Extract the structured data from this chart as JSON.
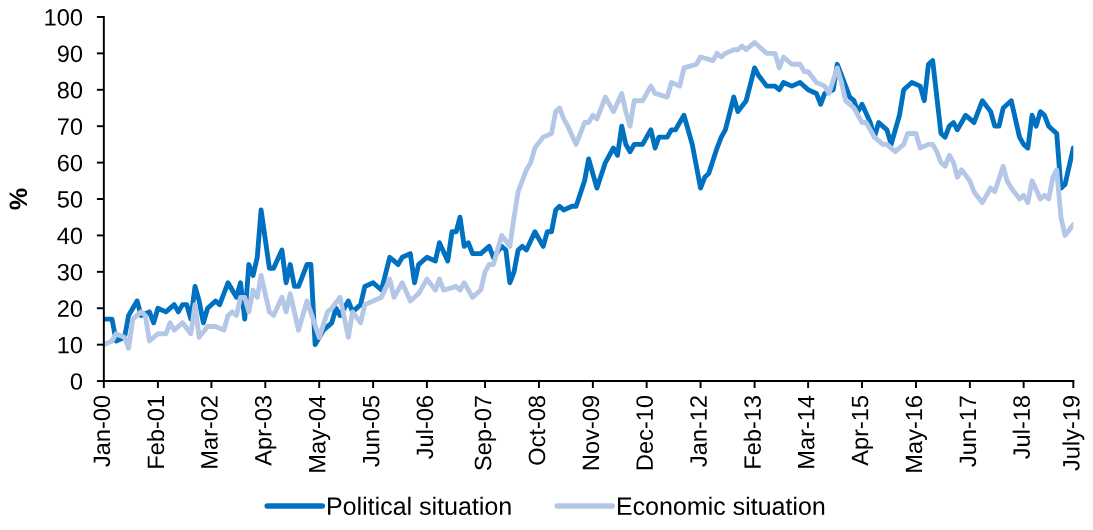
{
  "chart_data": {
    "type": "line",
    "ylabel": "%",
    "xlim": [
      "2000-01",
      "2019-07"
    ],
    "xticks": [
      {
        "value": "2000-01",
        "label": "Jan-00"
      },
      {
        "value": "2001-02",
        "label": "Feb-01"
      },
      {
        "value": "2002-03",
        "label": "Mar-02"
      },
      {
        "value": "2003-04",
        "label": "Apr-03"
      },
      {
        "value": "2004-05",
        "label": "May-04"
      },
      {
        "value": "2005-06",
        "label": "Jun-05"
      },
      {
        "value": "2006-07",
        "label": "Jul-06"
      },
      {
        "value": "2007-09",
        "label": "Sep-07"
      },
      {
        "value": "2008-10",
        "label": "Oct-08"
      },
      {
        "value": "2009-11",
        "label": "Nov-09"
      },
      {
        "value": "2010-12",
        "label": "Dec-10"
      },
      {
        "value": "2012-01",
        "label": "Jan-12"
      },
      {
        "value": "2013-02",
        "label": "Feb-13"
      },
      {
        "value": "2014-03",
        "label": "Mar-14"
      },
      {
        "value": "2015-04",
        "label": "Apr-15"
      },
      {
        "value": "2016-05",
        "label": "May-16"
      },
      {
        "value": "2017-06",
        "label": "Jun-17"
      },
      {
        "value": "2018-07",
        "label": "Jul-18"
      },
      {
        "value": "2019-07",
        "label": "July-19"
      }
    ],
    "ylim": [
      0,
      100
    ],
    "yticks": [
      0,
      10,
      20,
      30,
      40,
      50,
      60,
      70,
      80,
      90,
      100
    ],
    "legend": "bottom",
    "series": [
      {
        "name": "Political situation",
        "color": "#0070c0",
        "x": [
          "2000-01",
          "2000-03",
          "2000-04",
          "2000-06",
          "2000-07",
          "2000-09",
          "2000-10",
          "2000-12",
          "2001-01",
          "2001-02",
          "2001-04",
          "2001-06",
          "2001-07",
          "2001-08",
          "2001-09",
          "2001-10",
          "2001-11",
          "2001-12",
          "2002-01",
          "2002-02",
          "2002-04",
          "2002-05",
          "2002-07",
          "2002-09",
          "2002-10",
          "2002-11",
          "2002-12",
          "2003-01",
          "2003-02",
          "2003-03",
          "2003-05",
          "2003-06",
          "2003-08",
          "2003-09",
          "2003-10",
          "2003-11",
          "2003-12",
          "2004-02",
          "2004-03",
          "2004-04",
          "2004-06",
          "2004-08",
          "2004-09",
          "2004-10",
          "2004-12",
          "2005-01",
          "2005-03",
          "2005-04",
          "2005-06",
          "2005-08",
          "2005-10",
          "2005-11",
          "2005-12",
          "2006-01",
          "2006-03",
          "2006-04",
          "2006-05",
          "2006-07",
          "2006-09",
          "2006-10",
          "2006-12",
          "2007-01",
          "2007-02",
          "2007-03",
          "2007-04",
          "2007-05",
          "2007-06",
          "2007-08",
          "2007-10",
          "2007-11",
          "2008-01",
          "2008-02",
          "2008-03",
          "2008-04",
          "2008-05",
          "2008-06",
          "2008-07",
          "2008-09",
          "2008-11",
          "2008-12",
          "2009-01",
          "2009-02",
          "2009-03",
          "2009-04",
          "2009-06",
          "2009-07",
          "2009-09",
          "2009-10",
          "2009-12",
          "2010-02",
          "2010-04",
          "2010-05",
          "2010-06",
          "2010-07",
          "2010-08",
          "2010-09",
          "2010-11",
          "2010-12",
          "2011-01",
          "2011-02",
          "2011-03",
          "2011-05",
          "2011-06",
          "2011-07",
          "2011-09",
          "2011-11",
          "2012-01",
          "2012-02",
          "2012-03",
          "2012-05",
          "2012-06",
          "2012-07",
          "2012-09",
          "2012-10",
          "2012-12",
          "2013-02",
          "2013-03",
          "2013-05",
          "2013-07",
          "2013-08",
          "2013-09",
          "2013-11",
          "2014-01",
          "2014-03",
          "2014-05",
          "2014-06",
          "2014-07",
          "2014-09",
          "2014-10",
          "2014-11",
          "2015-01",
          "2015-02",
          "2015-03",
          "2015-04",
          "2015-06",
          "2015-07",
          "2015-08",
          "2015-10",
          "2015-11",
          "2016-01",
          "2016-02",
          "2016-04",
          "2016-06",
          "2016-07",
          "2016-08",
          "2016-09",
          "2016-11",
          "2016-12",
          "2017-01",
          "2017-02",
          "2017-03",
          "2017-05",
          "2017-06",
          "2017-07",
          "2017-09",
          "2017-11",
          "2017-12",
          "2018-01",
          "2018-02",
          "2018-04",
          "2018-06",
          "2018-07",
          "2018-08",
          "2018-09",
          "2018-10",
          "2018-11",
          "2018-12",
          "2019-01",
          "2019-03",
          "2019-04",
          "2019-05",
          "2019-07"
        ],
        "values": [
          17,
          17,
          11,
          12,
          18,
          22,
          18,
          19,
          16,
          20,
          19,
          21,
          19,
          21,
          21,
          17,
          26,
          22,
          16,
          20,
          22,
          21,
          27,
          23,
          27,
          17,
          32,
          29,
          34,
          47,
          31,
          31,
          36,
          27,
          32,
          26,
          26,
          32,
          32,
          10,
          14,
          16,
          20,
          18,
          22,
          19,
          21,
          26,
          27,
          25,
          34,
          33,
          32,
          34,
          35,
          27,
          32,
          34,
          33,
          38,
          33,
          41,
          41,
          45,
          37,
          38,
          35,
          35,
          37,
          34,
          37,
          36,
          27,
          30,
          36,
          37,
          36,
          41,
          37,
          41,
          41,
          47,
          48,
          47,
          48,
          48,
          55,
          61,
          53,
          60,
          64,
          62,
          70,
          65,
          63,
          65,
          65,
          67,
          69,
          64,
          67,
          67,
          69,
          69,
          73,
          65,
          53,
          56,
          57,
          64,
          67,
          69,
          78,
          74,
          77,
          86,
          84,
          81,
          81,
          80,
          82,
          81,
          82,
          80,
          79,
          76,
          79,
          80,
          87,
          84,
          78,
          77,
          74,
          76,
          71,
          67,
          71,
          69,
          65,
          73,
          80,
          82,
          81,
          77,
          87,
          88,
          68,
          67,
          70,
          71,
          69,
          73,
          72,
          71,
          77,
          74,
          70,
          70,
          75,
          77,
          67,
          65,
          64,
          73,
          70,
          74,
          73,
          70,
          68,
          53,
          54,
          64
        ]
      },
      {
        "name": "Economic situation",
        "color": "#b4c7e7",
        "x": [
          "2000-01",
          "2000-03",
          "2000-04",
          "2000-06",
          "2000-07",
          "2000-08",
          "2000-10",
          "2000-11",
          "2000-12",
          "2001-02",
          "2001-04",
          "2001-05",
          "2001-06",
          "2001-08",
          "2001-10",
          "2001-11",
          "2001-12",
          "2002-02",
          "2002-04",
          "2002-06",
          "2002-07",
          "2002-08",
          "2002-09",
          "2002-10",
          "2002-11",
          "2002-12",
          "2003-01",
          "2003-02",
          "2003-03",
          "2003-05",
          "2003-06",
          "2003-08",
          "2003-09",
          "2003-10",
          "2003-12",
          "2004-02",
          "2004-05",
          "2004-07",
          "2004-08",
          "2004-10",
          "2004-12",
          "2005-01",
          "2005-03",
          "2005-04",
          "2005-06",
          "2005-08",
          "2005-10",
          "2005-11",
          "2006-01",
          "2006-03",
          "2006-05",
          "2006-07",
          "2006-09",
          "2006-10",
          "2006-11",
          "2007-02",
          "2007-03",
          "2007-04",
          "2007-06",
          "2007-08",
          "2007-09",
          "2007-10",
          "2007-11",
          "2008-01",
          "2008-03",
          "2008-04",
          "2008-05",
          "2008-07",
          "2008-08",
          "2008-09",
          "2008-11",
          "2009-01",
          "2009-02",
          "2009-03",
          "2009-04",
          "2009-05",
          "2009-07",
          "2009-09",
          "2009-10",
          "2009-11",
          "2009-12",
          "2010-02",
          "2010-04",
          "2010-06",
          "2010-07",
          "2010-08",
          "2010-09",
          "2010-11",
          "2011-01",
          "2011-02",
          "2011-05",
          "2011-06",
          "2011-08",
          "2011-09",
          "2011-12",
          "2012-01",
          "2012-04",
          "2012-05",
          "2012-06",
          "2012-07",
          "2012-09",
          "2012-10",
          "2012-11",
          "2012-12",
          "2013-02",
          "2013-03",
          "2013-04",
          "2013-05",
          "2013-07",
          "2013-08",
          "2013-09",
          "2013-11",
          "2014-01",
          "2014-02",
          "2014-03",
          "2014-05",
          "2014-07",
          "2014-08",
          "2014-10",
          "2014-11",
          "2014-12",
          "2015-02",
          "2015-04",
          "2015-05",
          "2015-07",
          "2015-09",
          "2015-10",
          "2015-12",
          "2016-02",
          "2016-03",
          "2016-05",
          "2016-06",
          "2016-08",
          "2016-09",
          "2016-10",
          "2016-11",
          "2016-12",
          "2017-01",
          "2017-02",
          "2017-03",
          "2017-04",
          "2017-06",
          "2017-07",
          "2017-09",
          "2017-10",
          "2017-11",
          "2017-12",
          "2018-02",
          "2018-03",
          "2018-04",
          "2018-06",
          "2018-07",
          "2018-08",
          "2018-09",
          "2018-11",
          "2018-12",
          "2019-01",
          "2019-02",
          "2019-03",
          "2019-04",
          "2019-05",
          "2019-07"
        ],
        "values": [
          10,
          11,
          13,
          12,
          9,
          17,
          19,
          18,
          11,
          13,
          13,
          16,
          14,
          16,
          13,
          21,
          12,
          15,
          15,
          14,
          18,
          19,
          18,
          23,
          23,
          19,
          25,
          23,
          29,
          19,
          18,
          23,
          19,
          24,
          14,
          22,
          12,
          19,
          20,
          23,
          12,
          19,
          16,
          21,
          22,
          23,
          28,
          23,
          27,
          22,
          24,
          28,
          25,
          28,
          25,
          26,
          25,
          27,
          23,
          25,
          30,
          32,
          32,
          40,
          37,
          45,
          52,
          58,
          60,
          64,
          67,
          68,
          74,
          75,
          72,
          70,
          65,
          71,
          71,
          73,
          72,
          78,
          74,
          79,
          74,
          70,
          77,
          77,
          81,
          79,
          78,
          82,
          81,
          86,
          87,
          89,
          88,
          90,
          89,
          90,
          91,
          91,
          92,
          91,
          93,
          92,
          91,
          90,
          90,
          86,
          89,
          87,
          87,
          85,
          85,
          82,
          81,
          79,
          86,
          82,
          77,
          75,
          71,
          71,
          67,
          65,
          65,
          63,
          65,
          68,
          68,
          64,
          65,
          65,
          63,
          60,
          59,
          62,
          60,
          56,
          58,
          55,
          52,
          49,
          51,
          53,
          52,
          59,
          55,
          53,
          50,
          51,
          49,
          55,
          50,
          51,
          50,
          56,
          58,
          45,
          40,
          43
        ]
      }
    ]
  }
}
